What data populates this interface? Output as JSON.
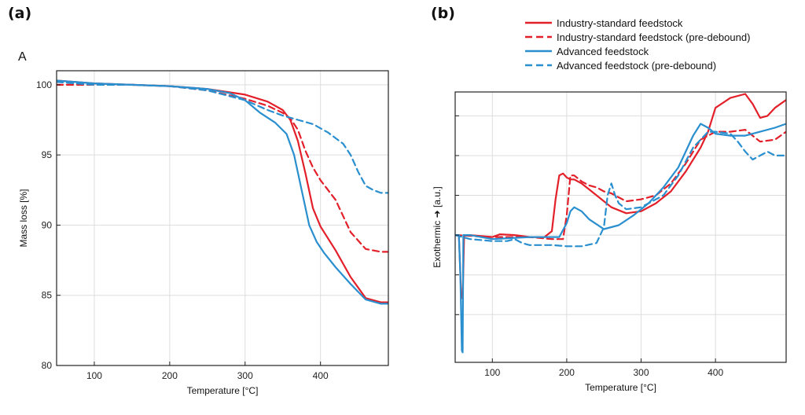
{
  "panels": {
    "a_tag": "(a)",
    "b_tag": "(b)",
    "a_subtag": "A"
  },
  "colors": {
    "industry": "#e3202a",
    "advanced": "#2a8fcf",
    "grid": "#dddddd",
    "axis": "#222222"
  },
  "legend": [
    {
      "label": "Industry-standard feedstock",
      "color": "#e3202a",
      "dash": false
    },
    {
      "label": "Industry-standard feedstock (pre-debound)",
      "color": "#e3202a",
      "dash": true
    },
    {
      "label": "Advanced feedstock",
      "color": "#2a8fcf",
      "dash": false
    },
    {
      "label": "Advanced feedstock (pre-debound)",
      "color": "#2a8fcf",
      "dash": true
    }
  ],
  "chart_data": [
    {
      "type": "line",
      "xlabel": "Temperature [°C]",
      "ylabel": "Mass loss [%]",
      "xlim": [
        50,
        490
      ],
      "ylim": [
        80,
        101
      ],
      "xticks": [
        100,
        200,
        300,
        400
      ],
      "yticks": [
        80,
        85,
        90,
        95,
        100
      ],
      "grid": true,
      "series": [
        {
          "name": "Industry-standard feedstock",
          "color": "#e3202a",
          "dash": false,
          "x": [
            50,
            100,
            150,
            200,
            250,
            300,
            330,
            350,
            360,
            370,
            380,
            390,
            400,
            420,
            440,
            460,
            480,
            490
          ],
          "y": [
            100.3,
            100.1,
            100.0,
            99.9,
            99.7,
            99.3,
            98.8,
            98.2,
            97.5,
            96.0,
            93.7,
            91.2,
            89.9,
            88.2,
            86.3,
            84.8,
            84.5,
            84.5
          ]
        },
        {
          "name": "Industry-standard feedstock (pre-debound)",
          "color": "#e3202a",
          "dash": true,
          "x": [
            50,
            100,
            150,
            200,
            250,
            300,
            330,
            350,
            360,
            370,
            380,
            390,
            400,
            420,
            440,
            460,
            480,
            490
          ],
          "y": [
            100.0,
            100.0,
            100.0,
            99.9,
            99.6,
            99.0,
            98.5,
            98.0,
            97.6,
            96.8,
            95.3,
            94.1,
            93.2,
            91.8,
            89.5,
            88.3,
            88.1,
            88.1
          ]
        },
        {
          "name": "Advanced feedstock",
          "color": "#2a8fcf",
          "dash": false,
          "x": [
            50,
            100,
            150,
            200,
            250,
            280,
            300,
            320,
            340,
            355,
            365,
            375,
            385,
            395,
            405,
            420,
            440,
            460,
            480,
            490
          ],
          "y": [
            100.3,
            100.1,
            100.0,
            99.9,
            99.7,
            99.4,
            98.9,
            98.0,
            97.3,
            96.5,
            95.0,
            92.5,
            90.0,
            88.8,
            88.0,
            87.0,
            85.8,
            84.7,
            84.4,
            84.4
          ]
        },
        {
          "name": "Advanced feedstock (pre-debound)",
          "color": "#2a8fcf",
          "dash": true,
          "x": [
            50,
            100,
            150,
            200,
            250,
            300,
            330,
            350,
            370,
            390,
            410,
            430,
            440,
            450,
            460,
            470,
            480,
            490
          ],
          "y": [
            100.2,
            100.0,
            100.0,
            99.9,
            99.6,
            98.9,
            98.2,
            97.8,
            97.5,
            97.2,
            96.6,
            95.8,
            95.0,
            93.8,
            92.8,
            92.5,
            92.3,
            92.3
          ]
        }
      ]
    },
    {
      "type": "line",
      "xlabel": "Temperature [°C]",
      "ylabel": "Exothermic ➜ [a.u.]",
      "xlim": [
        50,
        495
      ],
      "ylim": [
        -3.2,
        3.6
      ],
      "xticks": [
        100,
        200,
        300,
        400
      ],
      "yticks": [
        -2,
        -1,
        0,
        1,
        2,
        3
      ],
      "show_ytick_labels": false,
      "grid": true,
      "series": [
        {
          "name": "Industry-standard feedstock",
          "color": "#e3202a",
          "dash": false,
          "x": [
            50,
            55,
            58,
            60,
            62,
            64,
            70,
            100,
            110,
            130,
            150,
            170,
            180,
            185,
            190,
            195,
            200,
            205,
            210,
            220,
            230,
            240,
            260,
            280,
            300,
            320,
            340,
            360,
            380,
            390,
            400,
            420,
            440,
            450,
            460,
            470,
            480,
            495
          ],
          "y": [
            0.0,
            0.0,
            -1.5,
            -1.6,
            0.0,
            0.0,
            0.0,
            -0.05,
            0.02,
            0.0,
            -0.05,
            -0.05,
            0.1,
            0.9,
            1.5,
            1.55,
            1.45,
            1.4,
            1.4,
            1.3,
            1.15,
            1.0,
            0.7,
            0.55,
            0.6,
            0.8,
            1.1,
            1.6,
            2.2,
            2.6,
            3.2,
            3.45,
            3.55,
            3.3,
            2.95,
            3.0,
            3.2,
            3.4
          ]
        },
        {
          "name": "Industry-standard feedstock (pre-debound)",
          "color": "#e3202a",
          "dash": true,
          "x": [
            50,
            100,
            150,
            180,
            195,
            200,
            205,
            210,
            220,
            230,
            240,
            250,
            260,
            270,
            280,
            300,
            320,
            340,
            360,
            380,
            400,
            420,
            440,
            460,
            480,
            495
          ],
          "y": [
            0.0,
            -0.05,
            -0.05,
            -0.1,
            -0.1,
            0.5,
            1.5,
            1.5,
            1.35,
            1.25,
            1.2,
            1.1,
            1.05,
            0.95,
            0.85,
            0.9,
            1.0,
            1.3,
            1.8,
            2.4,
            2.6,
            2.6,
            2.65,
            2.35,
            2.4,
            2.6
          ]
        },
        {
          "name": "Advanced feedstock",
          "color": "#2a8fcf",
          "dash": false,
          "x": [
            50,
            55,
            57,
            59,
            60,
            61,
            63,
            70,
            100,
            150,
            190,
            200,
            205,
            210,
            220,
            230,
            250,
            270,
            290,
            310,
            330,
            350,
            370,
            380,
            390,
            400,
            420,
            440,
            460,
            480,
            495
          ],
          "y": [
            0.0,
            0.0,
            -1.0,
            -2.9,
            -2.95,
            0.0,
            0.0,
            0.0,
            -0.1,
            -0.05,
            -0.05,
            0.3,
            0.6,
            0.7,
            0.6,
            0.4,
            0.15,
            0.25,
            0.5,
            0.8,
            1.2,
            1.7,
            2.5,
            2.8,
            2.7,
            2.55,
            2.5,
            2.5,
            2.6,
            2.7,
            2.8
          ]
        },
        {
          "name": "Advanced feedstock (pre-debound)",
          "color": "#2a8fcf",
          "dash": true,
          "x": [
            50,
            70,
            100,
            120,
            130,
            140,
            150,
            180,
            200,
            220,
            240,
            250,
            255,
            260,
            265,
            270,
            280,
            300,
            330,
            350,
            370,
            390,
            400,
            420,
            430,
            440,
            450,
            460,
            470,
            480,
            495
          ],
          "y": [
            0.0,
            -0.1,
            -0.15,
            -0.15,
            -0.1,
            -0.2,
            -0.25,
            -0.25,
            -0.28,
            -0.28,
            -0.2,
            0.2,
            1.0,
            1.3,
            1.0,
            0.8,
            0.65,
            0.7,
            1.0,
            1.5,
            2.2,
            2.6,
            2.6,
            2.55,
            2.35,
            2.1,
            1.9,
            2.0,
            2.1,
            2.0,
            2.0
          ]
        }
      ]
    }
  ]
}
